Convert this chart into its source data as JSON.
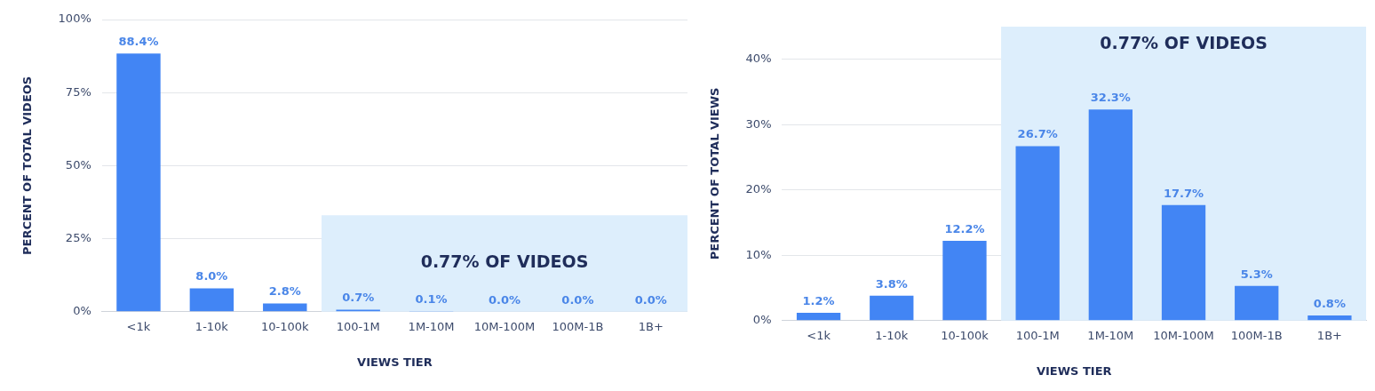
{
  "chart_data": [
    {
      "type": "bar",
      "xlabel": "VIEWS TIER",
      "ylabel": "PERCENT OF TOTAL VIDEOS",
      "categories": [
        "<1k",
        "1-10k",
        "10-100k",
        "100-1M",
        "1M-10M",
        "10M-100M",
        "100M-1B",
        "1B+"
      ],
      "values": [
        88.4,
        8.0,
        2.8,
        0.7,
        0.1,
        0.0,
        0.0,
        0.0
      ],
      "color": "#4285f4",
      "value_labels": [
        "88.4%",
        "8.0%",
        "2.8%",
        "0.7%",
        "0.1%",
        "0.0%",
        "0.0%",
        "0.0%"
      ],
      "ylim": [
        0,
        100
      ],
      "yticks": [
        {
          "value": 0,
          "label": "0%"
        },
        {
          "value": 25,
          "label": "25%"
        },
        {
          "value": 50,
          "label": "50%"
        },
        {
          "value": 75,
          "label": "75%"
        },
        {
          "value": 100,
          "label": "100%"
        }
      ],
      "grid": "y",
      "legend": false,
      "bands": [
        {
          "axis": "x",
          "from": "100-1M",
          "to": "1B+",
          "label": "0.77% OF VIDEOS",
          "color": "#ddeefc"
        }
      ]
    },
    {
      "type": "bar",
      "xlabel": "VIEWS TIER",
      "ylabel": "PERCENT OF TOTAL VIEWS",
      "categories": [
        "<1k",
        "1-10k",
        "10-100k",
        "100-1M",
        "1M-10M",
        "10M-100M",
        "100M-1B",
        "1B+"
      ],
      "values": [
        1.2,
        3.8,
        12.2,
        26.7,
        32.3,
        17.7,
        5.3,
        0.8
      ],
      "color": "#4285f4",
      "value_labels": [
        "1.2%",
        "3.8%",
        "12.2%",
        "26.7%",
        "32.3%",
        "17.7%",
        "5.3%",
        "0.8%"
      ],
      "ylim": [
        0,
        45
      ],
      "yticks": [
        {
          "value": 0,
          "label": "0%"
        },
        {
          "value": 10,
          "label": "10%"
        },
        {
          "value": 20,
          "label": "20%"
        },
        {
          "value": 30,
          "label": "30%"
        },
        {
          "value": 40,
          "label": "40%"
        }
      ],
      "grid": "y",
      "legend": false,
      "bands": [
        {
          "axis": "x",
          "from": "100-1M",
          "to": "1B+",
          "label": "0.77% OF VIDEOS",
          "color": "#ddeefc"
        }
      ]
    }
  ]
}
